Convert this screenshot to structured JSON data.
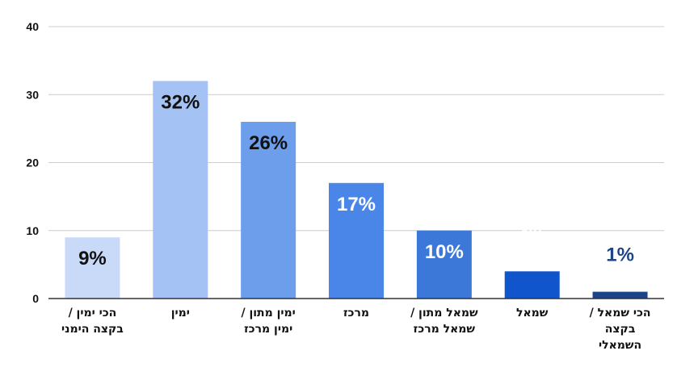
{
  "chart_data": {
    "type": "bar",
    "categories": [
      [
        "הכי ימין /",
        "בקצה הימני"
      ],
      [
        "ימין"
      ],
      [
        "ימין מתון /",
        "ימין מרכז"
      ],
      [
        "מרכז"
      ],
      [
        "שמאל מתון /",
        "שמאל מרכז"
      ],
      [
        "שמאל"
      ],
      [
        "הכי שמאל /",
        "בקצה",
        "השמאלי"
      ]
    ],
    "values": [
      9,
      32,
      26,
      17,
      10,
      4,
      1
    ],
    "data_labels": [
      "9%",
      "32%",
      "26%",
      "17%",
      "10%",
      "4%",
      "1%"
    ],
    "bar_colors": [
      "#c9daf8",
      "#a4c2f4",
      "#6d9eeb",
      "#4a86e8",
      "#3c78d8",
      "#1155cc",
      "#1c4587"
    ],
    "label_colors": [
      "#111111",
      "#111111",
      "#111111",
      "#ffffff",
      "#ffffff",
      "#ffffff",
      "#1c4587"
    ],
    "yticks": [
      0,
      10,
      20,
      30,
      40
    ],
    "ylim": [
      0,
      40
    ],
    "grid": true,
    "gridline_color": "#cccccc",
    "axis_color": "#333333"
  }
}
